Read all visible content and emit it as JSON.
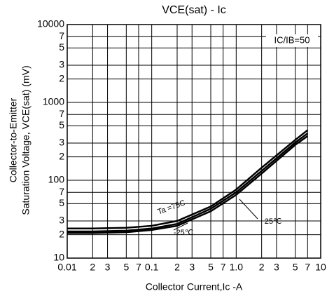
{
  "chart_data": {
    "type": "line",
    "title": "VCE(sat) - Ic",
    "xlabel": "Collector Current,Ic -A",
    "ylabel": [
      "Collector-to-Emitter",
      "Saturation Voltage, VCE(sat) (mV)"
    ],
    "annotations": [
      "IC/IB=50",
      "Ta =75C",
      "25℃",
      "-25℃"
    ],
    "log_x": true,
    "log_y": true,
    "grid": true,
    "x": [
      0.01,
      0.02,
      0.05,
      0.1,
      0.2,
      0.5,
      1,
      2,
      5,
      7
    ],
    "series": [
      {
        "name": "Ta =75C",
        "color": "#000000",
        "values": [
          24,
          24,
          24.5,
          26,
          30,
          46,
          76,
          145,
          330,
          440
        ]
      },
      {
        "name": "25℃",
        "color": "#000000",
        "values": [
          22,
          22,
          22.5,
          24,
          27.5,
          43,
          70,
          132,
          305,
          400
        ]
      },
      {
        "name": "-25℃",
        "color": "#000000",
        "values": [
          21,
          21,
          21.5,
          23,
          26,
          40,
          65,
          122,
          285,
          370
        ]
      }
    ],
    "xlim": [
      0.01,
      10
    ],
    "xticks": [
      0.01,
      {
        "value": 0.02,
        "label": "2"
      },
      {
        "value": 0.03,
        "label": "3"
      },
      {
        "value": 0.05,
        "label": "5"
      },
      {
        "value": 0.07,
        "label": "7"
      },
      0.1,
      {
        "value": 0.2,
        "label": "2"
      },
      {
        "value": 0.3,
        "label": "3"
      },
      {
        "value": 0.5,
        "label": "5"
      },
      {
        "value": 0.7,
        "label": "7"
      },
      {
        "value": 1,
        "label": "1.0"
      },
      {
        "value": 2,
        "label": "2"
      },
      {
        "value": 3,
        "label": "3"
      },
      {
        "value": 5,
        "label": "5"
      },
      {
        "value": 7,
        "label": "7"
      },
      10
    ],
    "ylim": [
      10,
      10000
    ],
    "yticks": [
      10,
      {
        "value": 20,
        "label": "2"
      },
      {
        "value": 30,
        "label": "3"
      },
      {
        "value": 50,
        "label": "5"
      },
      {
        "value": 70,
        "label": "7"
      },
      100,
      {
        "value": 200,
        "label": "2"
      },
      {
        "value": 300,
        "label": "3"
      },
      {
        "value": 500,
        "label": "5"
      },
      {
        "value": 700,
        "label": "7"
      },
      1000,
      {
        "value": 2000,
        "label": "2"
      },
      {
        "value": 3000,
        "label": "3"
      },
      {
        "value": 5000,
        "label": "5"
      },
      {
        "value": 7000,
        "label": "7"
      },
      10000
    ]
  }
}
